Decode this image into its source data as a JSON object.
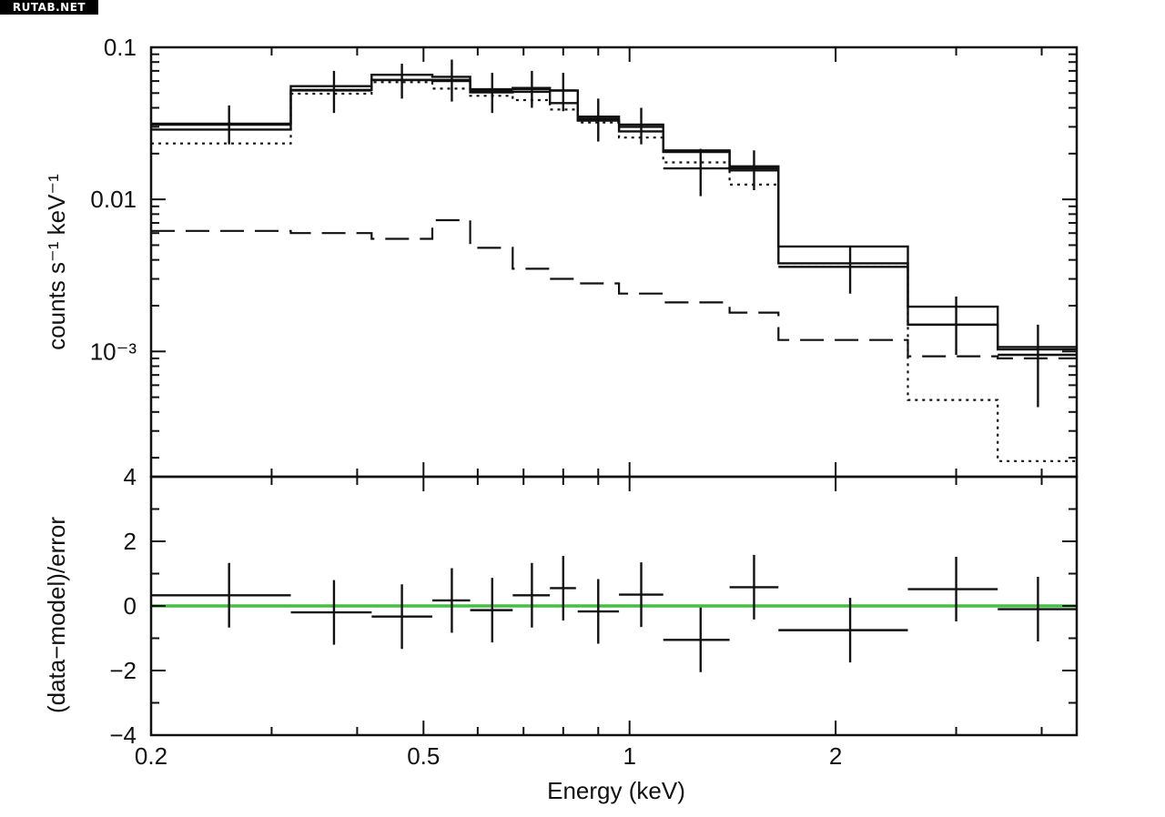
{
  "watermark": "RUTAB.NET",
  "colors": {
    "ink": "#111111",
    "zero_line": "#44c144",
    "background": "#ffffff"
  },
  "chart_data": [
    {
      "type": "line",
      "panel": "spectrum",
      "ylabel": "counts s⁻¹ keV⁻¹",
      "x_scale": "log",
      "y_scale": "log",
      "xlim": [
        0.2,
        4.5
      ],
      "ylim": [
        0.00015,
        0.1
      ],
      "y_ticks": [
        {
          "value": 0.1,
          "label": "0.1"
        },
        {
          "value": 0.01,
          "label": "0.01"
        },
        {
          "value": 0.001,
          "label": "10⁻³"
        }
      ],
      "data_points": [
        {
          "x": 0.26,
          "x_lo": 0.2,
          "x_hi": 0.32,
          "y": 0.031,
          "y_lo": 0.023,
          "y_hi": 0.0415
        },
        {
          "x": 0.37,
          "x_lo": 0.32,
          "x_hi": 0.42,
          "y": 0.052,
          "y_lo": 0.037,
          "y_hi": 0.07
        },
        {
          "x": 0.465,
          "x_lo": 0.42,
          "x_hi": 0.515,
          "y": 0.061,
          "y_lo": 0.046,
          "y_hi": 0.078
        },
        {
          "x": 0.55,
          "x_lo": 0.515,
          "x_hi": 0.585,
          "y": 0.061,
          "y_lo": 0.044,
          "y_hi": 0.083
        },
        {
          "x": 0.63,
          "x_lo": 0.585,
          "x_hi": 0.675,
          "y": 0.052,
          "y_lo": 0.037,
          "y_hi": 0.068
        },
        {
          "x": 0.72,
          "x_lo": 0.675,
          "x_hi": 0.765,
          "y": 0.053,
          "y_lo": 0.04,
          "y_hi": 0.07
        },
        {
          "x": 0.8,
          "x_lo": 0.765,
          "x_hi": 0.835,
          "y": 0.052,
          "y_lo": 0.038,
          "y_hi": 0.068
        },
        {
          "x": 0.9,
          "x_lo": 0.84,
          "x_hi": 0.965,
          "y": 0.034,
          "y_lo": 0.024,
          "y_hi": 0.046
        },
        {
          "x": 1.04,
          "x_lo": 0.965,
          "x_hi": 1.12,
          "y": 0.03,
          "y_lo": 0.023,
          "y_hi": 0.04
        },
        {
          "x": 1.27,
          "x_lo": 1.12,
          "x_hi": 1.4,
          "y": 0.016,
          "y_lo": 0.0105,
          "y_hi": 0.0215
        },
        {
          "x": 1.52,
          "x_lo": 1.4,
          "x_hi": 1.65,
          "y": 0.016,
          "y_lo": 0.0115,
          "y_hi": 0.021
        },
        {
          "x": 2.1,
          "x_lo": 1.65,
          "x_hi": 2.55,
          "y": 0.0036,
          "y_lo": 0.0024,
          "y_hi": 0.0049
        },
        {
          "x": 3.0,
          "x_lo": 2.55,
          "x_hi": 3.45,
          "y": 0.0015,
          "y_lo": 0.00095,
          "y_hi": 0.0023
        },
        {
          "x": 3.95,
          "x_lo": 3.45,
          "x_hi": 4.5,
          "y": 0.00095,
          "y_lo": 0.00043,
          "y_hi": 0.0015
        }
      ],
      "model_lines": [
        {
          "style": "solid",
          "values": [
            0.0315,
            0.0555,
            0.066,
            0.064,
            0.053,
            0.054,
            0.052,
            0.035,
            0.031,
            0.021,
            0.0165,
            0.0049,
            0.00197,
            0.00107
          ]
        },
        {
          "style": "solid",
          "values": [
            0.0288,
            0.0525,
            0.061,
            0.06,
            0.0505,
            0.051,
            0.043,
            0.033,
            0.028,
            0.0205,
            0.0155,
            0.0038,
            0.0015,
            0.00103
          ]
        },
        {
          "style": "dotted",
          "values": [
            0.0233,
            0.0495,
            0.059,
            0.0535,
            0.048,
            0.045,
            0.039,
            0.032,
            0.0255,
            0.0175,
            0.0125,
            0.0036,
            0.00048,
            0.00019
          ]
        },
        {
          "style": "dashed",
          "values": [
            0.0062,
            0.006,
            0.0055,
            0.0073,
            0.0048,
            0.0035,
            0.003,
            0.0028,
            0.0024,
            0.0021,
            0.0018,
            0.00119,
            0.00093,
            0.0009
          ]
        }
      ]
    },
    {
      "type": "scatter",
      "panel": "residuals",
      "xlabel": "Energy (keV)",
      "ylabel": "(data−model)/error",
      "x_scale": "log",
      "xlim": [
        0.2,
        4.5
      ],
      "ylim": [
        -4,
        4
      ],
      "x_ticks": [
        {
          "value": 0.2,
          "label": "0.2"
        },
        {
          "value": 0.5,
          "label": "0.5"
        },
        {
          "value": 1,
          "label": "1"
        },
        {
          "value": 2,
          "label": "2"
        }
      ],
      "y_ticks": [
        {
          "value": 4,
          "label": "4"
        },
        {
          "value": 2,
          "label": "2"
        },
        {
          "value": 0,
          "label": "0"
        },
        {
          "value": -2,
          "label": "−2"
        },
        {
          "value": -4,
          "label": "−4"
        }
      ],
      "reference_line": 0,
      "points": [
        {
          "x": 0.26,
          "x_lo": 0.2,
          "x_hi": 0.32,
          "y": 0.33,
          "err": 1.0
        },
        {
          "x": 0.37,
          "x_lo": 0.32,
          "x_hi": 0.42,
          "y": -0.2,
          "err": 1.0
        },
        {
          "x": 0.465,
          "x_lo": 0.42,
          "x_hi": 0.515,
          "y": -0.33,
          "err": 1.0
        },
        {
          "x": 0.55,
          "x_lo": 0.515,
          "x_hi": 0.585,
          "y": 0.17,
          "err": 1.0
        },
        {
          "x": 0.63,
          "x_lo": 0.585,
          "x_hi": 0.675,
          "y": -0.13,
          "err": 1.0
        },
        {
          "x": 0.72,
          "x_lo": 0.675,
          "x_hi": 0.765,
          "y": 0.33,
          "err": 1.0
        },
        {
          "x": 0.8,
          "x_lo": 0.765,
          "x_hi": 0.835,
          "y": 0.55,
          "err": 1.0
        },
        {
          "x": 0.9,
          "x_lo": 0.84,
          "x_hi": 0.965,
          "y": -0.17,
          "err": 1.0
        },
        {
          "x": 1.04,
          "x_lo": 0.965,
          "x_hi": 1.12,
          "y": 0.35,
          "err": 1.0
        },
        {
          "x": 1.27,
          "x_lo": 1.12,
          "x_hi": 1.4,
          "y": -1.05,
          "err": 1.0
        },
        {
          "x": 1.52,
          "x_lo": 1.4,
          "x_hi": 1.65,
          "y": 0.58,
          "err": 1.0
        },
        {
          "x": 2.1,
          "x_lo": 1.65,
          "x_hi": 2.55,
          "y": -0.75,
          "err": 1.0
        },
        {
          "x": 3.0,
          "x_lo": 2.55,
          "x_hi": 3.45,
          "y": 0.52,
          "err": 1.0
        },
        {
          "x": 3.95,
          "x_lo": 3.45,
          "x_hi": 4.5,
          "y": -0.1,
          "err": 1.0
        }
      ]
    }
  ]
}
